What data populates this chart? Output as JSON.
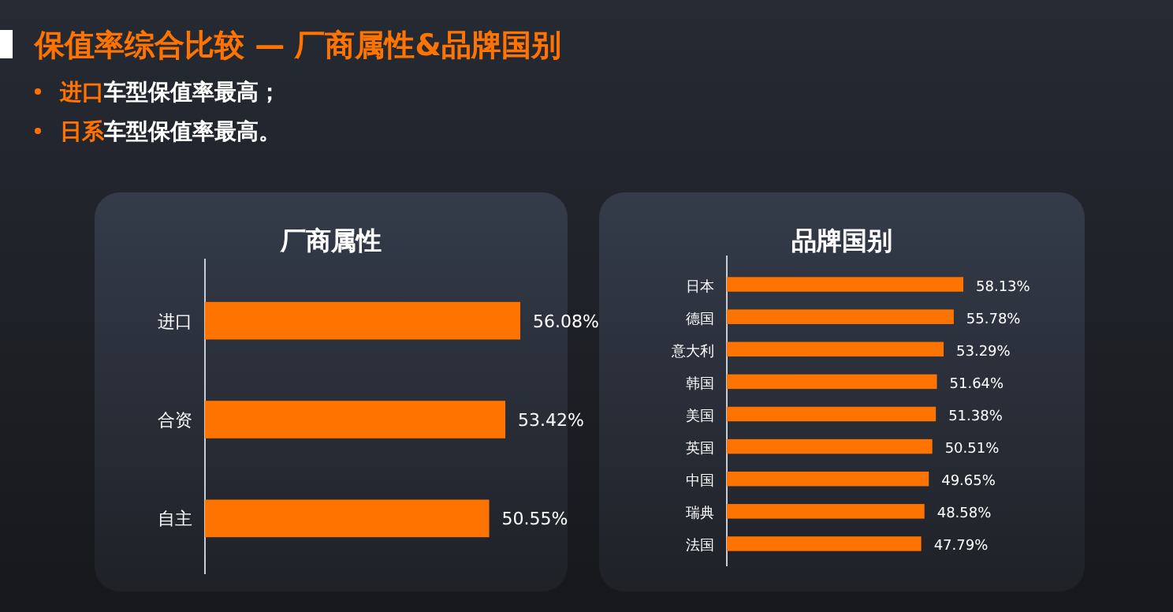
{
  "chart_data": [
    {
      "type": "other",
      "title": "保值率综合比较 — 厂商属性&品牌国别",
      "annotations": [
        "进口车型保值率最高；",
        "日系车型保值率最高。"
      ]
    },
    {
      "type": "bar",
      "orientation": "horizontal",
      "title": "厂商属性",
      "categories": [
        "进口",
        "合资",
        "自主"
      ],
      "values": [
        56.08,
        53.42,
        50.55
      ],
      "value_labels": [
        "56.08%",
        "53.42%",
        "50.55%"
      ],
      "color": "#ff7300",
      "tick_labels": "y"
    },
    {
      "type": "bar",
      "orientation": "horizontal",
      "title": "品牌国别",
      "categories": [
        "日本",
        "德国",
        "意大利",
        "韩国",
        "美国",
        "英国",
        "中国",
        "瑞典",
        "法国"
      ],
      "values": [
        58.13,
        55.78,
        53.29,
        51.64,
        51.38,
        50.51,
        49.65,
        48.58,
        47.79
      ],
      "value_labels": [
        "58.13%",
        "55.78%",
        "53.29%",
        "51.64%",
        "51.38%",
        "50.51%",
        "49.65%",
        "48.58%",
        "47.79%"
      ],
      "color": "#ff7300",
      "tick_labels": "y"
    }
  ]
}
